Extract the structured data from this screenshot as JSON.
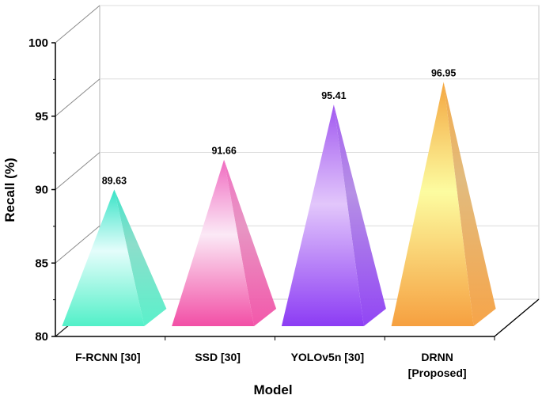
{
  "chart_data": {
    "type": "bar",
    "style": "3d-pyramid",
    "title": "",
    "xlabel": "Model",
    "ylabel": "Recall (%)",
    "ylim": [
      80,
      100
    ],
    "yticks": [
      80,
      85,
      90,
      95,
      100
    ],
    "categories": [
      {
        "lines": [
          "F-RCNN  [30]"
        ]
      },
      {
        "lines": [
          "SSD  [30]"
        ]
      },
      {
        "lines": [
          "YOLOv5n  [30]"
        ]
      },
      {
        "lines": [
          "DRNN",
          "[Proposed]"
        ]
      }
    ],
    "values": [
      89.63,
      91.66,
      95.41,
      96.95
    ],
    "value_labels": [
      "89.63",
      "91.66",
      "95.41",
      "96.95"
    ],
    "colors": [
      {
        "base": "#52f0c8",
        "mid": "#e4fdfb",
        "tip": "#36e3c6",
        "side": "#86dcc8"
      },
      {
        "base": "#f24fa6",
        "mid": "#fbe9f6",
        "tip": "#f06ac0",
        "side": "#e690c0"
      },
      {
        "base": "#8c3cf4",
        "mid": "#e2c6fb",
        "tip": "#a057f0",
        "side": "#b28ae4"
      },
      {
        "base": "#f6a040",
        "mid": "#fcfca0",
        "tip": "#f4a640",
        "side": "#e0b878"
      }
    ]
  }
}
